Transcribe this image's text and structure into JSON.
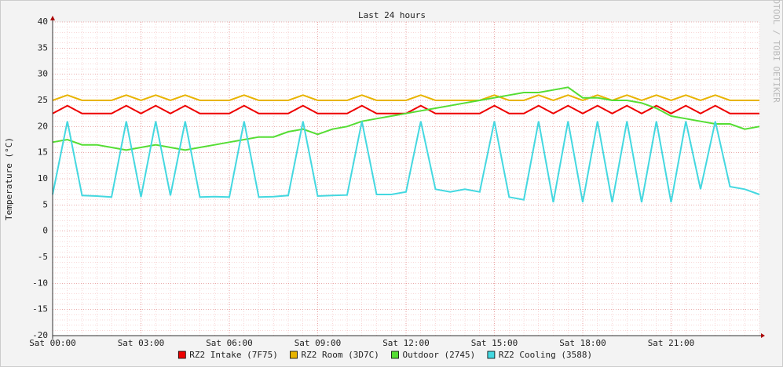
{
  "chart_data": {
    "type": "line",
    "title": "Last 24 hours",
    "y_label": "Temperature (°C)",
    "watermark": "RRDTOOL / TOBI OETIKER",
    "x": [
      0,
      0.5,
      1,
      1.5,
      2,
      2.5,
      3,
      3.5,
      4,
      4.5,
      5,
      5.5,
      6,
      6.5,
      7,
      7.5,
      8,
      8.5,
      9,
      9.5,
      10,
      10.5,
      11,
      11.5,
      12,
      12.5,
      13,
      13.5,
      14,
      14.5,
      15,
      15.5,
      16,
      16.5,
      17,
      17.5,
      18,
      18.5,
      19,
      19.5,
      20,
      20.5,
      21,
      21.5,
      22,
      22.5,
      23,
      23.5,
      24
    ],
    "xlim": [
      0,
      24
    ],
    "xticks": [
      {
        "value": 0,
        "label": "Sat 00:00"
      },
      {
        "value": 3,
        "label": "Sat 03:00"
      },
      {
        "value": 6,
        "label": "Sat 06:00"
      },
      {
        "value": 9,
        "label": "Sat 09:00"
      },
      {
        "value": 12,
        "label": "Sat 12:00"
      },
      {
        "value": 15,
        "label": "Sat 15:00"
      },
      {
        "value": 18,
        "label": "Sat 18:00"
      },
      {
        "value": 21,
        "label": "Sat 21:00"
      }
    ],
    "ylim": [
      -20,
      40
    ],
    "yticks": [
      -20,
      -15,
      -10,
      -5,
      0,
      5,
      10,
      15,
      20,
      25,
      30,
      35,
      40
    ],
    "grid": true,
    "series": [
      {
        "name": "RZ2 Intake (7F75)",
        "color": "#ee0000",
        "values": [
          22.5,
          24,
          22.5,
          22.5,
          22.5,
          24,
          22.5,
          24,
          22.5,
          24,
          22.5,
          22.5,
          22.5,
          24,
          22.5,
          22.5,
          22.5,
          24,
          22.5,
          22.5,
          22.5,
          24,
          22.5,
          22.5,
          22.5,
          24,
          22.5,
          22.5,
          22.5,
          22.5,
          24,
          22.5,
          22.5,
          24,
          22.5,
          24,
          22.5,
          24,
          22.5,
          24,
          22.5,
          24,
          22.5,
          24,
          22.5,
          24,
          22.5,
          22.5,
          22.5
        ]
      },
      {
        "name": "RZ2 Room (3D7C)",
        "color": "#e8b400",
        "values": [
          25,
          26,
          25,
          25,
          25,
          26,
          25,
          26,
          25,
          26,
          25,
          25,
          25,
          26,
          25,
          25,
          25,
          26,
          25,
          25,
          25,
          26,
          25,
          25,
          25,
          26,
          25,
          25,
          25,
          25,
          26,
          25,
          25,
          26,
          25,
          26,
          25,
          26,
          25,
          26,
          25,
          26,
          25,
          26,
          25,
          26,
          25,
          25,
          25
        ]
      },
      {
        "name": "Outdoor (2745)",
        "color": "#55dd33",
        "values": [
          17,
          17.5,
          16.5,
          16.5,
          16,
          15.5,
          16,
          16.5,
          16,
          15.5,
          16,
          16.5,
          17,
          17.5,
          18,
          18,
          19,
          19.5,
          18.5,
          19.5,
          20,
          21,
          21.5,
          22,
          22.5,
          23,
          23.5,
          24,
          24.5,
          25,
          25.5,
          26,
          26.5,
          26.5,
          27,
          27.5,
          25.5,
          25.5,
          25,
          25,
          24.5,
          23.5,
          22,
          21.5,
          21,
          20.5,
          20.5,
          19.5,
          20
        ]
      },
      {
        "name": "RZ2 Cooling (3588)",
        "color": "#44d8e0",
        "values": [
          7,
          21,
          6.8,
          6.7,
          6.5,
          21,
          6.5,
          21,
          6.8,
          21,
          6.5,
          6.6,
          6.5,
          21,
          6.5,
          6.6,
          6.8,
          21,
          6.7,
          6.8,
          6.9,
          21,
          7,
          7,
          7.5,
          21,
          8,
          7.5,
          8,
          7.5,
          21,
          6.5,
          6,
          21,
          5.5,
          21,
          5.5,
          21,
          5.5,
          21,
          5.5,
          21,
          5.5,
          21,
          8,
          21,
          8.5,
          8,
          7
        ]
      }
    ]
  }
}
